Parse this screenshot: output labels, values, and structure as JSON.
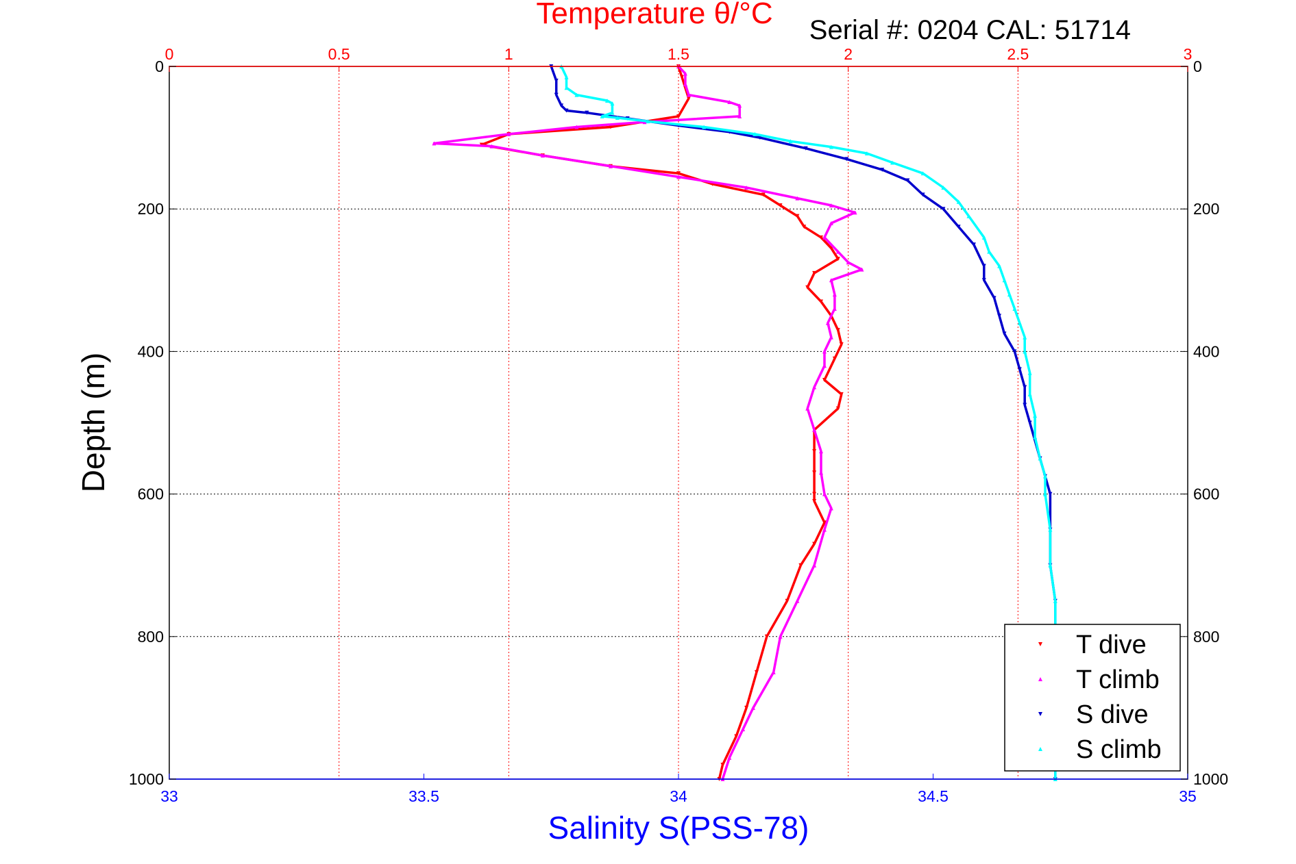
{
  "chart_data": {
    "type": "scatter",
    "title": "Temperature θ/°C",
    "subtitle": "Serial #: 0204  CAL: 51714",
    "ylabel": "Depth (m)",
    "xlabel": "Salinity S(PSS-78)",
    "ylim": [
      0,
      1000
    ],
    "y_reversed": true,
    "y_ticks": [
      "0",
      "200",
      "400",
      "600",
      "800",
      "1000"
    ],
    "temp_axis": {
      "lim": [
        0,
        3
      ],
      "ticks": [
        "0",
        "0.5",
        "1",
        "1.5",
        "2",
        "2.5",
        "3"
      ],
      "color": "#ff0000",
      "position": "top"
    },
    "sal_axis": {
      "lim": [
        33,
        35
      ],
      "ticks": [
        "33",
        "33.5",
        "34",
        "34.5",
        "35"
      ],
      "color": "#0000ff",
      "position": "bottom"
    },
    "grid": true,
    "legend_position": "bottom-right",
    "series": [
      {
        "name": "T dive",
        "axis": "temperature",
        "color": "#ff0000",
        "marker": "triangle-down",
        "points": [
          [
            1.5,
            0
          ],
          [
            1.51,
            15
          ],
          [
            1.52,
            30
          ],
          [
            1.53,
            45
          ],
          [
            1.5,
            70
          ],
          [
            1.3,
            85
          ],
          [
            1.0,
            95
          ],
          [
            0.92,
            110
          ],
          [
            1.1,
            125
          ],
          [
            1.3,
            140
          ],
          [
            1.5,
            150
          ],
          [
            1.6,
            165
          ],
          [
            1.75,
            180
          ],
          [
            1.8,
            195
          ],
          [
            1.85,
            210
          ],
          [
            1.87,
            225
          ],
          [
            1.92,
            240
          ],
          [
            1.95,
            255
          ],
          [
            1.97,
            270
          ],
          [
            1.9,
            290
          ],
          [
            1.88,
            310
          ],
          [
            1.92,
            330
          ],
          [
            1.95,
            350
          ],
          [
            1.97,
            370
          ],
          [
            1.98,
            390
          ],
          [
            1.96,
            410
          ],
          [
            1.93,
            440
          ],
          [
            1.98,
            460
          ],
          [
            1.97,
            480
          ],
          [
            1.9,
            510
          ],
          [
            1.9,
            540
          ],
          [
            1.9,
            570
          ],
          [
            1.9,
            600
          ],
          [
            1.9,
            610
          ],
          [
            1.93,
            640
          ],
          [
            1.9,
            670
          ],
          [
            1.86,
            700
          ],
          [
            1.82,
            750
          ],
          [
            1.76,
            800
          ],
          [
            1.73,
            850
          ],
          [
            1.7,
            900
          ],
          [
            1.67,
            940
          ],
          [
            1.63,
            980
          ],
          [
            1.62,
            1000
          ]
        ]
      },
      {
        "name": "T climb",
        "axis": "temperature",
        "color": "#ff00ff",
        "marker": "triangle-up",
        "points": [
          [
            1.5,
            0
          ],
          [
            1.52,
            10
          ],
          [
            1.52,
            25
          ],
          [
            1.53,
            40
          ],
          [
            1.65,
            50
          ],
          [
            1.68,
            55
          ],
          [
            1.68,
            70
          ],
          [
            1.4,
            78
          ],
          [
            1.2,
            85
          ],
          [
            1.0,
            95
          ],
          [
            0.78,
            108
          ],
          [
            0.95,
            112
          ],
          [
            1.1,
            125
          ],
          [
            1.3,
            140
          ],
          [
            1.5,
            155
          ],
          [
            1.7,
            170
          ],
          [
            1.85,
            185
          ],
          [
            1.95,
            195
          ],
          [
            2.02,
            205
          ],
          [
            1.95,
            220
          ],
          [
            1.93,
            240
          ],
          [
            1.97,
            260
          ],
          [
            2.0,
            275
          ],
          [
            2.04,
            285
          ],
          [
            1.95,
            300
          ],
          [
            1.96,
            320
          ],
          [
            1.96,
            340
          ],
          [
            1.94,
            360
          ],
          [
            1.95,
            380
          ],
          [
            1.93,
            400
          ],
          [
            1.93,
            420
          ],
          [
            1.9,
            450
          ],
          [
            1.88,
            480
          ],
          [
            1.9,
            510
          ],
          [
            1.92,
            540
          ],
          [
            1.92,
            570
          ],
          [
            1.93,
            600
          ],
          [
            1.95,
            620
          ],
          [
            1.93,
            650
          ],
          [
            1.9,
            700
          ],
          [
            1.85,
            750
          ],
          [
            1.8,
            800
          ],
          [
            1.78,
            850
          ],
          [
            1.72,
            900
          ],
          [
            1.69,
            930
          ],
          [
            1.65,
            970
          ],
          [
            1.63,
            1000
          ]
        ]
      },
      {
        "name": "S dive",
        "axis": "salinity",
        "color": "#0000cc",
        "marker": "triangle-down",
        "points": [
          [
            33.75,
            0
          ],
          [
            33.76,
            20
          ],
          [
            33.76,
            40
          ],
          [
            33.77,
            55
          ],
          [
            33.78,
            62
          ],
          [
            33.82,
            65
          ],
          [
            33.9,
            73
          ],
          [
            34.0,
            83
          ],
          [
            34.1,
            92
          ],
          [
            34.16,
            100
          ],
          [
            34.25,
            115
          ],
          [
            34.33,
            130
          ],
          [
            34.4,
            145
          ],
          [
            34.45,
            160
          ],
          [
            34.48,
            180
          ],
          [
            34.52,
            200
          ],
          [
            34.55,
            225
          ],
          [
            34.58,
            250
          ],
          [
            34.6,
            280
          ],
          [
            34.6,
            300
          ],
          [
            34.62,
            325
          ],
          [
            34.63,
            350
          ],
          [
            34.64,
            375
          ],
          [
            34.66,
            400
          ],
          [
            34.67,
            425
          ],
          [
            34.68,
            450
          ],
          [
            34.68,
            475
          ],
          [
            34.69,
            500
          ],
          [
            34.7,
            525
          ],
          [
            34.71,
            550
          ],
          [
            34.72,
            575
          ],
          [
            34.73,
            600
          ],
          [
            34.73,
            650
          ],
          [
            34.73,
            700
          ],
          [
            34.74,
            750
          ],
          [
            34.74,
            800
          ],
          [
            34.74,
            850
          ],
          [
            34.74,
            900
          ],
          [
            34.74,
            950
          ],
          [
            34.74,
            1000
          ]
        ]
      },
      {
        "name": "S climb",
        "axis": "salinity",
        "color": "#00ffff",
        "marker": "triangle-up",
        "points": [
          [
            33.77,
            0
          ],
          [
            33.78,
            15
          ],
          [
            33.78,
            30
          ],
          [
            33.8,
            40
          ],
          [
            33.86,
            48
          ],
          [
            33.87,
            52
          ],
          [
            33.87,
            65
          ],
          [
            33.85,
            70
          ],
          [
            33.88,
            72
          ],
          [
            33.94,
            77
          ],
          [
            34.05,
            85
          ],
          [
            34.15,
            95
          ],
          [
            34.22,
            105
          ],
          [
            34.3,
            113
          ],
          [
            34.37,
            122
          ],
          [
            34.42,
            135
          ],
          [
            34.48,
            150
          ],
          [
            34.52,
            170
          ],
          [
            34.55,
            190
          ],
          [
            34.57,
            210
          ],
          [
            34.6,
            240
          ],
          [
            34.61,
            260
          ],
          [
            34.63,
            280
          ],
          [
            34.64,
            300
          ],
          [
            34.65,
            320
          ],
          [
            34.66,
            340
          ],
          [
            34.67,
            360
          ],
          [
            34.68,
            380
          ],
          [
            34.68,
            400
          ],
          [
            34.69,
            430
          ],
          [
            34.69,
            460
          ],
          [
            34.7,
            490
          ],
          [
            34.7,
            520
          ],
          [
            34.71,
            550
          ],
          [
            34.72,
            575
          ],
          [
            34.72,
            600
          ],
          [
            34.73,
            650
          ],
          [
            34.73,
            700
          ],
          [
            34.74,
            750
          ],
          [
            34.74,
            800
          ],
          [
            34.74,
            850
          ],
          [
            34.74,
            900
          ],
          [
            34.74,
            950
          ],
          [
            34.74,
            1000
          ]
        ]
      }
    ]
  }
}
